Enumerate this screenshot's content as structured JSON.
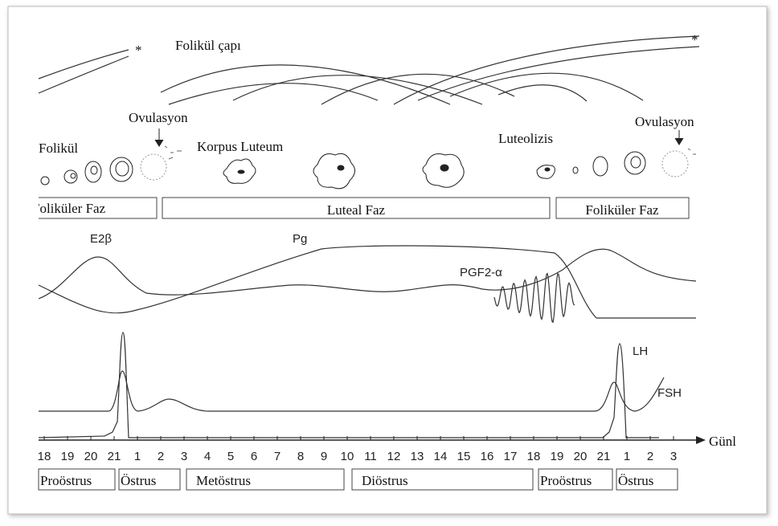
{
  "follicle": {
    "title": "Folikül çapı",
    "asterisks": [
      "*",
      "*"
    ]
  },
  "stages_top": {
    "follicle": "Folikül",
    "ovulation_left": "Ovulasyon",
    "corpus_luteum": "Korpus Luteum",
    "luteolysis": "Luteolizis",
    "ovulation_right": "Ovulasyon"
  },
  "phases": [
    "Foliküler Faz",
    "Luteal Faz",
    "Foliküler Faz"
  ],
  "hormones": {
    "e2": "E2β",
    "pg": "Pg",
    "pgf": "PGF2-α",
    "lh": "LH",
    "fsh": "FSH"
  },
  "axis": {
    "label": "Günl",
    "days": [
      "18",
      "19",
      "20",
      "21",
      "1",
      "2",
      "3",
      "4",
      "5",
      "6",
      "7",
      "8",
      "9",
      "10",
      "11",
      "12",
      "13",
      "14",
      "15",
      "16",
      "17",
      "18",
      "19",
      "20",
      "21",
      "1",
      "2",
      "3"
    ]
  },
  "cycle_stages": [
    "Proöstrus",
    "Östrus",
    "Metöstrus",
    "Diöstrus",
    "Proöstrus",
    "Östrus"
  ]
}
